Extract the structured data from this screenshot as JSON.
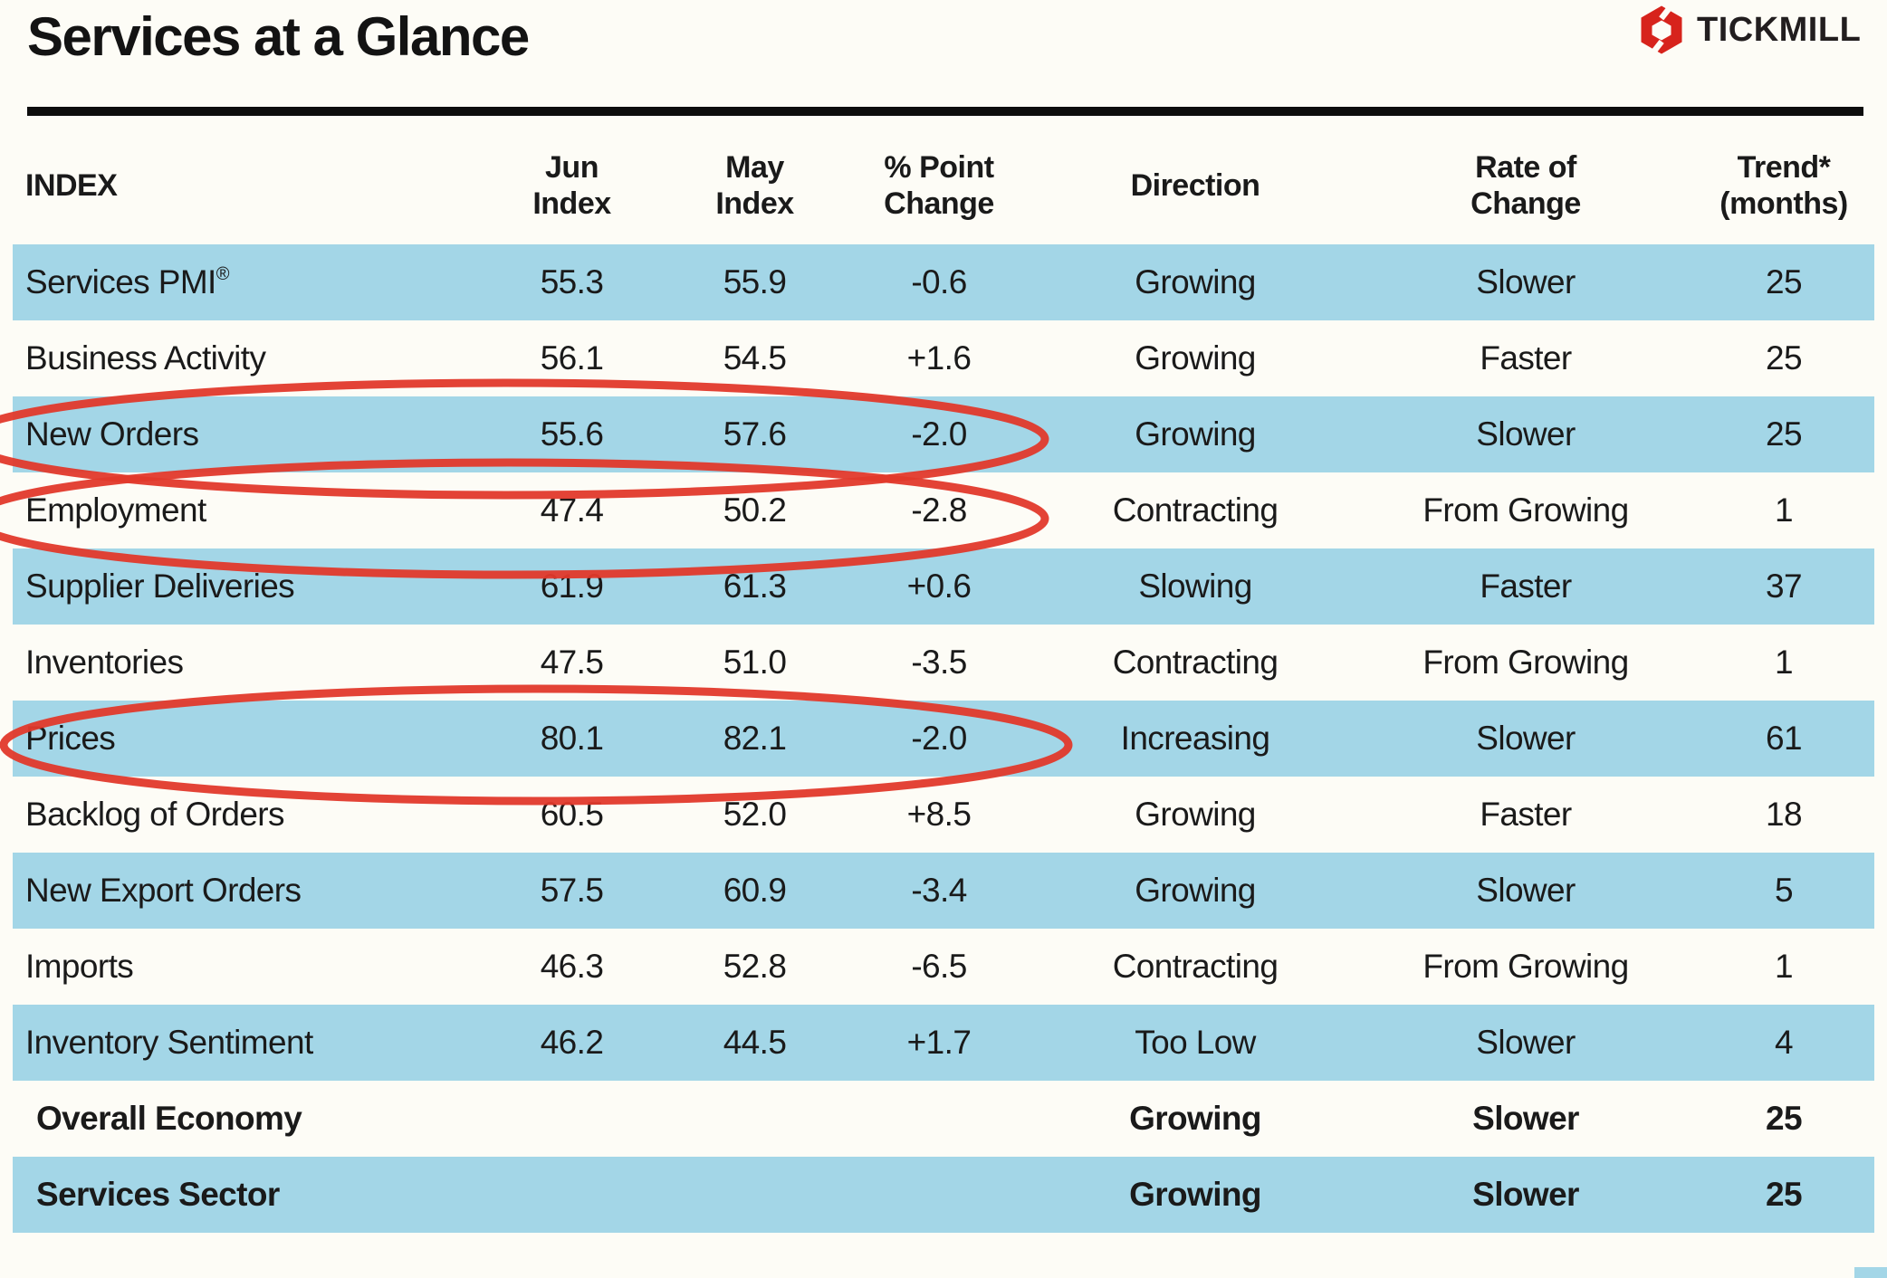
{
  "page": {
    "title": "Services at a Glance"
  },
  "brand": {
    "name": "TICKMILL"
  },
  "table": {
    "header": [
      {
        "l1": "INDEX",
        "l2": ""
      },
      {
        "l1": "Jun",
        "l2": "Index"
      },
      {
        "l1": "May",
        "l2": "Index"
      },
      {
        "l1": "% Point",
        "l2": "Change"
      },
      {
        "l1": "Direction",
        "l2": ""
      },
      {
        "l1": "Rate of",
        "l2": "Change"
      },
      {
        "l1": "Trend*",
        "l2": "(months)"
      }
    ],
    "rows": [
      {
        "label": "Services PMI",
        "sup": "®",
        "jun": "55.3",
        "may": "55.9",
        "change": "-0.6",
        "direction": "Growing",
        "rate": "Slower",
        "trend": "25",
        "shaded": true,
        "bold": false,
        "circled": false
      },
      {
        "label": "Business Activity",
        "jun": "56.1",
        "may": "54.5",
        "change": "+1.6",
        "direction": "Growing",
        "rate": "Faster",
        "trend": "25",
        "shaded": false,
        "bold": false,
        "circled": false
      },
      {
        "label": "New Orders",
        "jun": "55.6",
        "may": "57.6",
        "change": "-2.0",
        "direction": "Growing",
        "rate": "Slower",
        "trend": "25",
        "shaded": true,
        "bold": false,
        "circled": true
      },
      {
        "label": "Employment",
        "jun": "47.4",
        "may": "50.2",
        "change": "-2.8",
        "direction": "Contracting",
        "rate": "From Growing",
        "trend": "1",
        "shaded": false,
        "bold": false,
        "circled": true
      },
      {
        "label": "Supplier Deliveries",
        "jun": "61.9",
        "may": "61.3",
        "change": "+0.6",
        "direction": "Slowing",
        "rate": "Faster",
        "trend": "37",
        "shaded": true,
        "bold": false,
        "circled": false
      },
      {
        "label": "Inventories",
        "jun": "47.5",
        "may": "51.0",
        "change": "-3.5",
        "direction": "Contracting",
        "rate": "From Growing",
        "trend": "1",
        "shaded": false,
        "bold": false,
        "circled": false
      },
      {
        "label": "Prices",
        "jun": "80.1",
        "may": "82.1",
        "change": "-2.0",
        "direction": "Increasing",
        "rate": "Slower",
        "trend": "61",
        "shaded": true,
        "bold": false,
        "circled": true
      },
      {
        "label": "Backlog of Orders",
        "jun": "60.5",
        "may": "52.0",
        "change": "+8.5",
        "direction": "Growing",
        "rate": "Faster",
        "trend": "18",
        "shaded": false,
        "bold": false,
        "circled": false
      },
      {
        "label": "New Export Orders",
        "jun": "57.5",
        "may": "60.9",
        "change": "-3.4",
        "direction": "Growing",
        "rate": "Slower",
        "trend": "5",
        "shaded": true,
        "bold": false,
        "circled": false
      },
      {
        "label": "Imports",
        "jun": "46.3",
        "may": "52.8",
        "change": "-6.5",
        "direction": "Contracting",
        "rate": "From Growing",
        "trend": "1",
        "shaded": false,
        "bold": false,
        "circled": false
      },
      {
        "label": "Inventory Sentiment",
        "jun": "46.2",
        "may": "44.5",
        "change": "+1.7",
        "direction": "Too Low",
        "rate": "Slower",
        "trend": "4",
        "shaded": true,
        "bold": false,
        "circled": false
      },
      {
        "label": "Overall Economy",
        "jun": "",
        "may": "",
        "change": "",
        "direction": "Growing",
        "rate": "Slower",
        "trend": "25",
        "shaded": false,
        "bold": true,
        "circled": false
      },
      {
        "label": "Services Sector",
        "jun": "",
        "may": "",
        "change": "",
        "direction": "Growing",
        "rate": "Slower",
        "trend": "25",
        "shaded": true,
        "bold": true,
        "circled": false
      }
    ]
  },
  "colors": {
    "row_blue": "#A3D6E7",
    "circle_red": "#E2392B",
    "brand_red": "#D7231C",
    "ink": "#1A1A1A",
    "page_bg": "#FDFCF6"
  }
}
